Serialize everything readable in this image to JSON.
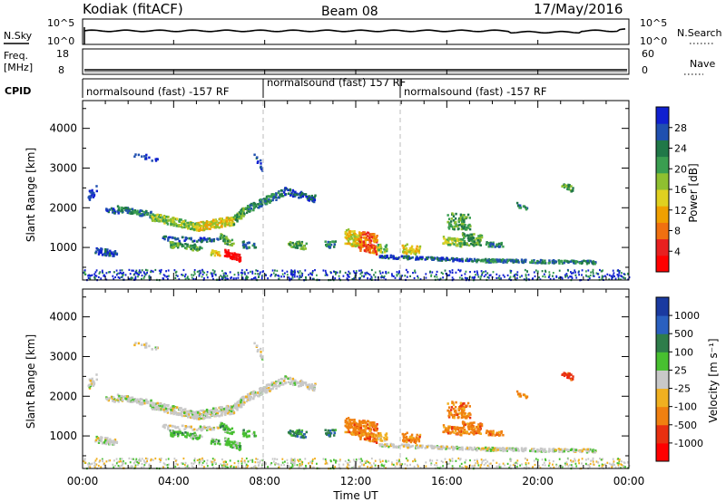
{
  "header": {
    "station": "Kodiak (fitACF)",
    "beam": "Beam 08",
    "date": "17/May/2016"
  },
  "strips": {
    "nsky": {
      "label": "N.Sky",
      "ytick_top": "10^5",
      "ytick_bottom": "10^0",
      "right_tick_top": "10^5",
      "right_tick_bottom": "10^0",
      "right_label": "N.Search"
    },
    "freq": {
      "label_line1": "Freq.",
      "label_line2": "[MHz]",
      "ytick_top": "18",
      "ytick_bottom": "8",
      "right_tick_top": "60",
      "right_tick_bottom": "0",
      "right_label": "Nave"
    },
    "cpid": {
      "label": "CPID",
      "modes": [
        "normalsound (fast) -157 RF",
        "normalsound (fast) 157 RF",
        "normalsound (fast) -157 RF"
      ]
    }
  },
  "chart_data": [
    {
      "type": "heatmap",
      "title": "",
      "ylabel": "Slant Range [km]",
      "xlabel": "",
      "ylim": [
        180,
        4700
      ],
      "yticks": [
        "1000",
        "2000",
        "3000",
        "4000"
      ],
      "colorbar": {
        "label": "Power [dB]",
        "ticks": [
          "4",
          "8",
          "12",
          "16",
          "20",
          "24",
          "28"
        ],
        "colors": [
          "#1020d0",
          "#2050b0",
          "#207848",
          "#3a9e50",
          "#8fc030",
          "#e0d020",
          "#f0a000",
          "#f07010",
          "#e82020",
          "#ff0000"
        ]
      }
    },
    {
      "type": "heatmap",
      "title": "",
      "ylabel": "Slant Range [km]",
      "xlabel": "Time UT",
      "ylim": [
        180,
        4700
      ],
      "yticks": [
        "1000",
        "2000",
        "3000",
        "4000"
      ],
      "xticks": [
        "00:00",
        "04:00",
        "08:00",
        "12:00",
        "16:00",
        "20:00",
        "00:00"
      ],
      "colorbar": {
        "label": "Velocity [m s⁻¹]",
        "ticks": [
          "1000",
          "500",
          "100",
          "25",
          "-25",
          "-100",
          "-500",
          "-1000"
        ],
        "colors": [
          "#1a3aa0",
          "#2a60c0",
          "#2e7d4a",
          "#48c030",
          "#c8c8c8",
          "#f0b020",
          "#f08010",
          "#e83010",
          "#ff0000"
        ]
      }
    }
  ],
  "colors": {
    "grid_dash": "#bbbbbb",
    "axis": "#000000"
  }
}
